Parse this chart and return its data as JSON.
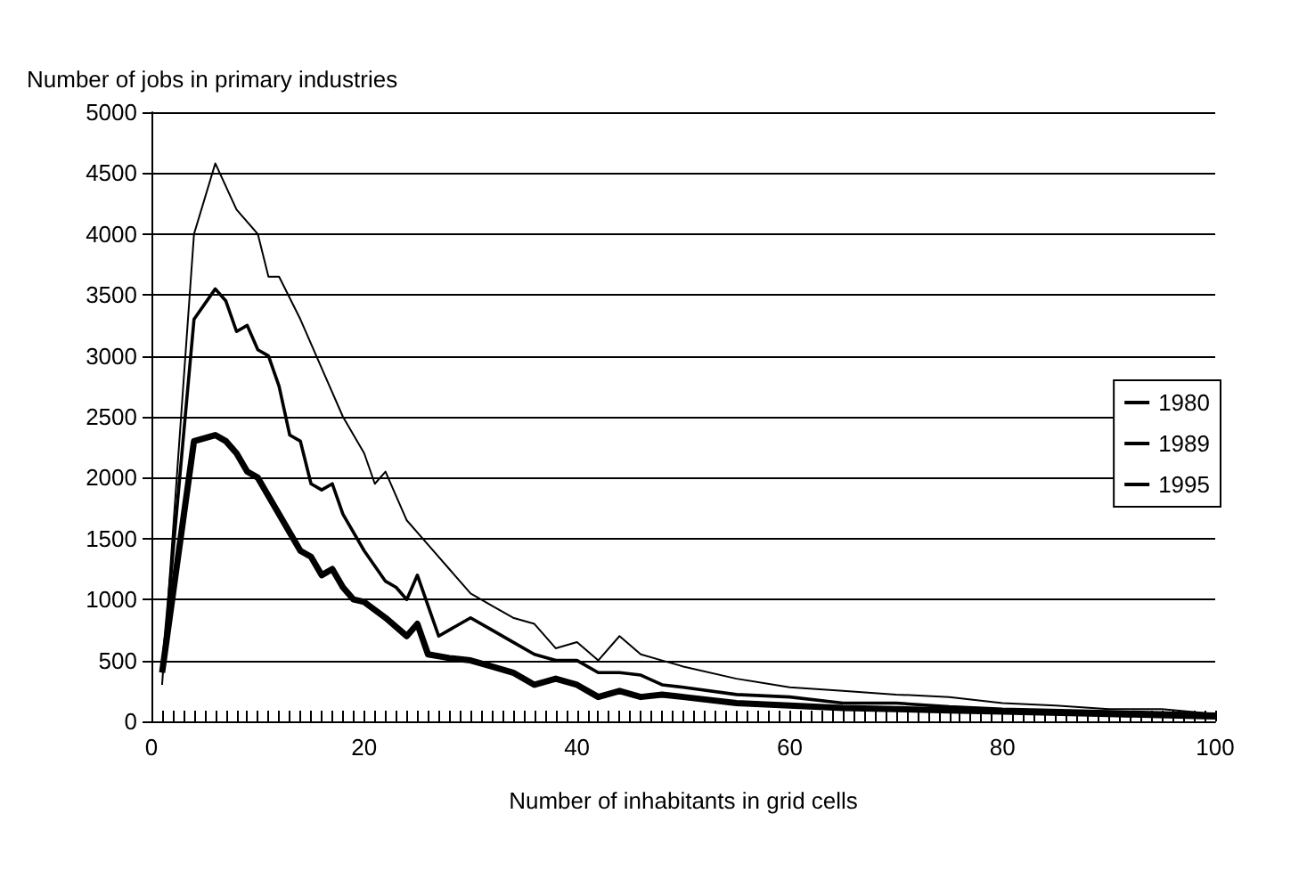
{
  "chart_data": {
    "type": "line",
    "ylabel": "Number of jobs in primary industries",
    "xlabel": "Number of inhabitants in grid cells",
    "xlim": [
      0,
      100
    ],
    "xticks": [
      0,
      20,
      40,
      60,
      80,
      100
    ],
    "ylim": [
      0,
      5000
    ],
    "yticks": [
      0,
      500,
      1000,
      1500,
      2000,
      2500,
      3000,
      3500,
      4000,
      4500,
      5000
    ],
    "grid": "y",
    "legend": "right",
    "marker": "none",
    "line_style": "solid",
    "series": [
      {
        "name": "1980",
        "color": "#000000",
        "x": [
          1,
          4,
          6,
          8,
          10,
          11,
          12,
          14,
          16,
          18,
          20,
          21,
          22,
          24,
          26,
          28,
          30,
          32,
          34,
          36,
          38,
          40,
          42,
          44,
          46,
          48,
          50,
          55,
          60,
          65,
          70,
          75,
          80,
          85,
          90,
          95,
          100
        ],
        "values": [
          300,
          4000,
          4580,
          4200,
          4000,
          3650,
          3650,
          3300,
          2900,
          2500,
          2200,
          1950,
          2050,
          1650,
          1450,
          1250,
          1050,
          950,
          850,
          800,
          600,
          650,
          500,
          700,
          550,
          500,
          450,
          350,
          280,
          250,
          220,
          200,
          150,
          130,
          100,
          100,
          60
        ]
      },
      {
        "name": "1989",
        "color": "#000000",
        "x": [
          1,
          4,
          6,
          7,
          8,
          9,
          10,
          11,
          12,
          13,
          14,
          15,
          16,
          17,
          18,
          20,
          22,
          23,
          24,
          25,
          26,
          27,
          28,
          30,
          32,
          34,
          36,
          38,
          40,
          42,
          44,
          46,
          48,
          50,
          55,
          60,
          65,
          70,
          75,
          80,
          90,
          100
        ],
        "values": [
          400,
          3300,
          3550,
          3450,
          3200,
          3250,
          3050,
          3000,
          2750,
          2350,
          2300,
          1950,
          1900,
          1950,
          1700,
          1400,
          1150,
          1100,
          1000,
          1200,
          950,
          700,
          750,
          850,
          750,
          650,
          550,
          500,
          500,
          400,
          400,
          380,
          300,
          280,
          220,
          200,
          150,
          150,
          120,
          100,
          80,
          60
        ]
      },
      {
        "name": "1995",
        "color": "#000000",
        "x": [
          1,
          4,
          6,
          7,
          8,
          9,
          10,
          11,
          12,
          13,
          14,
          15,
          16,
          17,
          18,
          19,
          20,
          22,
          24,
          25,
          26,
          28,
          30,
          32,
          34,
          36,
          38,
          40,
          42,
          44,
          46,
          48,
          50,
          55,
          60,
          65,
          70,
          75,
          80,
          90,
          100
        ],
        "values": [
          400,
          2300,
          2350,
          2300,
          2200,
          2050,
          2000,
          1850,
          1700,
          1550,
          1400,
          1350,
          1200,
          1250,
          1100,
          1000,
          980,
          850,
          700,
          800,
          550,
          520,
          500,
          450,
          400,
          300,
          350,
          300,
          200,
          250,
          200,
          220,
          200,
          150,
          130,
          110,
          100,
          90,
          80,
          60,
          40
        ]
      }
    ]
  }
}
